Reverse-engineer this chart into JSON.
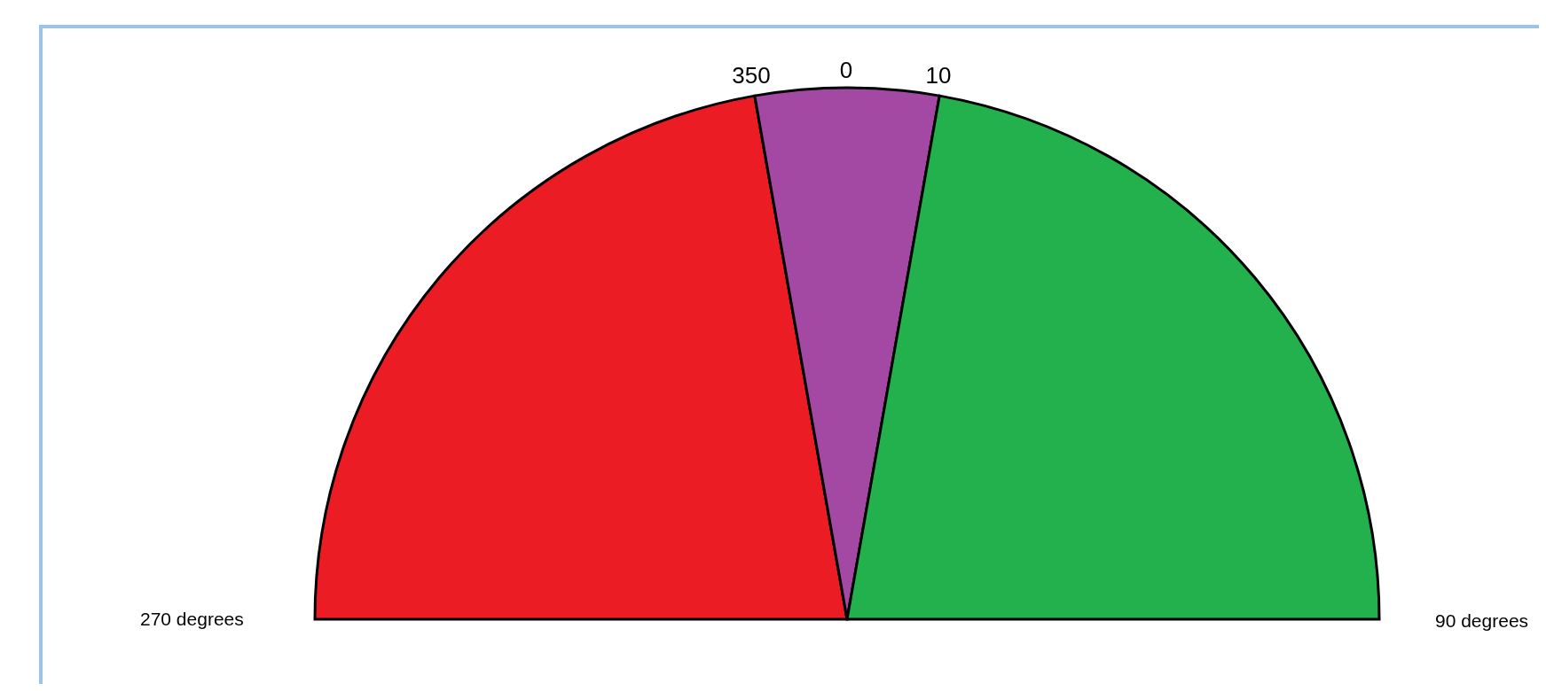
{
  "chart_data": {
    "type": "pie",
    "categories": [
      null,
      null,
      null
    ],
    "values": [
      44.44,
      11.11,
      44.44
    ],
    "colors": [
      "#ec1c24",
      "#a349a4",
      "#22b14c"
    ],
    "annotations": [
      "350",
      "0",
      "10",
      "270 degrees",
      "90 degrees"
    ]
  }
}
